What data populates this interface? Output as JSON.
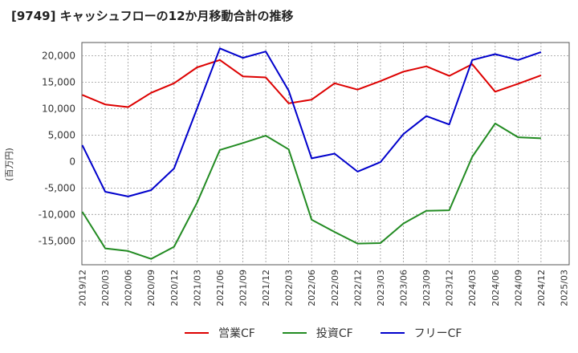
{
  "title": "[9749]  キャッシュフローの12か月移動合計の推移",
  "chart_data": {
    "type": "line",
    "title": "[9749]  キャッシュフローの12か月移動合計の推移",
    "xlabel": "",
    "ylabel": "(百万円)",
    "ylim": [
      -19500,
      22500
    ],
    "yticks": [
      -15000,
      -10000,
      -5000,
      0,
      5000,
      10000,
      15000,
      20000
    ],
    "ytick_labels": [
      "-15,000",
      "-10,000",
      "-5,000",
      "0",
      "5,000",
      "10,000",
      "15,000",
      "20,000"
    ],
    "grid": true,
    "legend_position": "bottom",
    "categories": [
      "2019/12",
      "2020/03",
      "2020/06",
      "2020/09",
      "2020/12",
      "2021/03",
      "2021/06",
      "2021/09",
      "2021/12",
      "2022/03",
      "2022/06",
      "2022/09",
      "2022/12",
      "2023/03",
      "2023/06",
      "2023/09",
      "2023/12",
      "2024/03",
      "2024/06",
      "2024/09",
      "2024/12",
      "2025/03"
    ],
    "series": [
      {
        "name": "営業CF",
        "color": "#dd0000",
        "values": [
          12600,
          10800,
          10300,
          13000,
          14800,
          17800,
          19200,
          16100,
          15900,
          11000,
          11700,
          14800,
          13600,
          15200,
          17000,
          18000,
          16200,
          18400,
          13200,
          14700,
          16300,
          null
        ]
      },
      {
        "name": "投資CF",
        "color": "#228b22",
        "values": [
          -9500,
          -16400,
          -16900,
          -18400,
          -16100,
          -7800,
          2200,
          3500,
          4900,
          2300,
          -11000,
          -13300,
          -15500,
          -15400,
          -11700,
          -9300,
          -9200,
          900,
          7200,
          4600,
          4400,
          null
        ]
      },
      {
        "name": "フリーCF",
        "color": "#0000cc",
        "values": [
          3100,
          -5700,
          -6600,
          -5400,
          -1300,
          10000,
          21400,
          19600,
          20800,
          13400,
          600,
          1500,
          -1900,
          -100,
          5200,
          8600,
          7000,
          19200,
          20300,
          19200,
          20700,
          null
        ]
      }
    ]
  }
}
